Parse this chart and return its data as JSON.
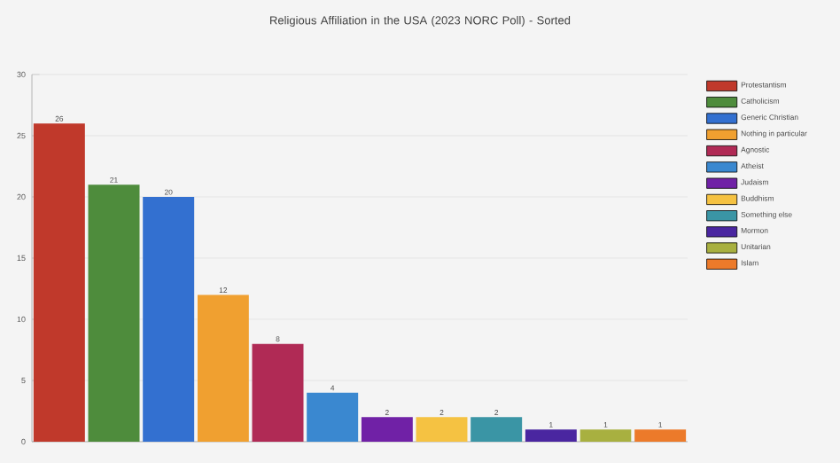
{
  "chart_data": {
    "type": "bar",
    "title": "Religious Affiliation in the USA (2023 NORC Poll) - Sorted",
    "categories": [
      null,
      null,
      null,
      null,
      null,
      null,
      null,
      null,
      null,
      null,
      null,
      null
    ],
    "series": [
      {
        "name": "Protestantism",
        "color": "#c0392b",
        "values": [
          26,
          null,
          null,
          null,
          null,
          null,
          null,
          null,
          null,
          null,
          null,
          null
        ]
      },
      {
        "name": "Catholicism",
        "color": "#4e8c3c",
        "values": [
          null,
          21,
          null,
          null,
          null,
          null,
          null,
          null,
          null,
          null,
          null,
          null
        ]
      },
      {
        "name": "Generic Christian",
        "color": "#3370d0",
        "values": [
          null,
          null,
          20,
          null,
          null,
          null,
          null,
          null,
          null,
          null,
          null,
          null
        ]
      },
      {
        "name": "Nothing in particular",
        "color": "#f0a030",
        "values": [
          null,
          null,
          null,
          12,
          null,
          null,
          null,
          null,
          null,
          null,
          null,
          null
        ]
      },
      {
        "name": "Agnostic",
        "color": "#b02a55",
        "values": [
          null,
          null,
          null,
          null,
          8,
          null,
          null,
          null,
          null,
          null,
          null,
          null
        ]
      },
      {
        "name": "Atheist",
        "color": "#3a88d0",
        "values": [
          null,
          null,
          null,
          null,
          null,
          4,
          null,
          null,
          null,
          null,
          null,
          null
        ]
      },
      {
        "name": "Judaism",
        "color": "#7021a6",
        "values": [
          null,
          null,
          null,
          null,
          null,
          null,
          2,
          null,
          null,
          null,
          null,
          null
        ]
      },
      {
        "name": "Buddhism",
        "color": "#f5c242",
        "values": [
          null,
          null,
          null,
          null,
          null,
          null,
          null,
          2,
          null,
          null,
          null,
          null
        ]
      },
      {
        "name": "Something else",
        "color": "#3a95a5",
        "values": [
          null,
          null,
          null,
          null,
          null,
          null,
          null,
          null,
          2,
          null,
          null,
          null
        ]
      },
      {
        "name": "Mormon",
        "color": "#4a26a0",
        "values": [
          null,
          null,
          null,
          null,
          null,
          null,
          null,
          null,
          null,
          1,
          null,
          null
        ]
      },
      {
        "name": "Unitarian",
        "color": "#a8b040",
        "values": [
          null,
          null,
          null,
          null,
          null,
          null,
          null,
          null,
          null,
          null,
          1,
          null
        ]
      },
      {
        "name": "Islam",
        "color": "#ec7a2a",
        "values": [
          null,
          null,
          null,
          null,
          null,
          null,
          null,
          null,
          null,
          null,
          null,
          1
        ]
      }
    ],
    "ylim": [
      0,
      30
    ],
    "yticks": [
      0,
      5,
      10,
      15,
      20,
      25,
      30
    ],
    "grid": "y",
    "legend": "right",
    "data_labels": true,
    "tick_labels": "y"
  }
}
